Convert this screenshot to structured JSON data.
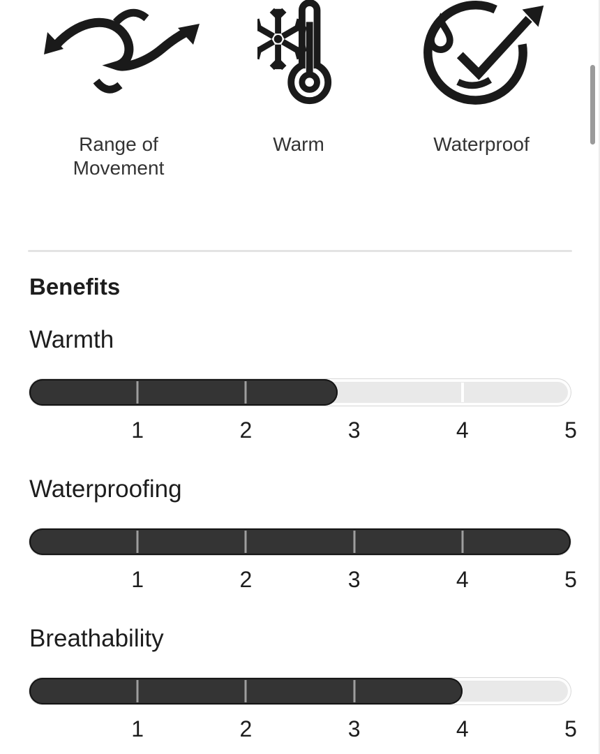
{
  "features": [
    {
      "label": "Range of Movement",
      "icon": "range-of-movement-icon"
    },
    {
      "label": "Warm",
      "icon": "warm-icon"
    },
    {
      "label": "Waterproof",
      "icon": "waterproof-icon"
    }
  ],
  "benefits": {
    "heading": "Benefits",
    "scale_labels": [
      "1",
      "2",
      "3",
      "4",
      "5"
    ],
    "scale_max": 5,
    "bars": [
      {
        "name": "Warmth",
        "value": 2.85
      },
      {
        "name": "Waterproofing",
        "value": 5
      },
      {
        "name": "Breathability",
        "value": 4
      }
    ]
  },
  "colors": {
    "bar_fill": "#343434",
    "bar_track": "#e9e9e9",
    "tick_on_fill": "#9e9e9e",
    "tick_on_track": "#ffffff",
    "divider": "#e3e3e3",
    "text_primary": "#1d1d1d",
    "text_secondary": "#333333",
    "scrollbar_thumb": "#9a9a9a"
  }
}
